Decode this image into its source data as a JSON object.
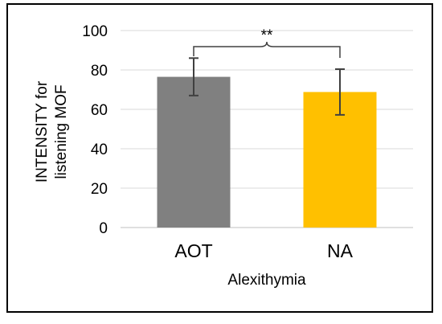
{
  "chart_data": {
    "type": "bar",
    "categories": [
      "AOT",
      "NA"
    ],
    "values": [
      76.5,
      68.8
    ],
    "error": [
      9.5,
      11.6
    ],
    "colors": [
      "#808080",
      "#FFC000"
    ],
    "xlabel": "Alexithymia",
    "ylabel_lines": [
      "INTENSITY for",
      "listening MOF"
    ],
    "ylim": [
      0,
      100
    ],
    "yticks": [
      0,
      20,
      40,
      60,
      80,
      100
    ],
    "grid": true,
    "significance": {
      "label": "**",
      "between": [
        "AOT",
        "NA"
      ]
    }
  }
}
